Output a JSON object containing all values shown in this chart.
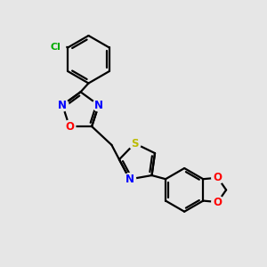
{
  "background_color": "#e6e6e6",
  "bond_color": "#000000",
  "bond_width": 1.6,
  "atom_colors": {
    "N": "#0000ff",
    "O": "#ff0000",
    "S": "#bbbb00",
    "Cl": "#00aa00",
    "C": "#000000"
  },
  "font_size": 8.5,
  "figsize": [
    3.0,
    3.0
  ],
  "dpi": 100,
  "xlim": [
    0,
    10
  ],
  "ylim": [
    0,
    10
  ]
}
